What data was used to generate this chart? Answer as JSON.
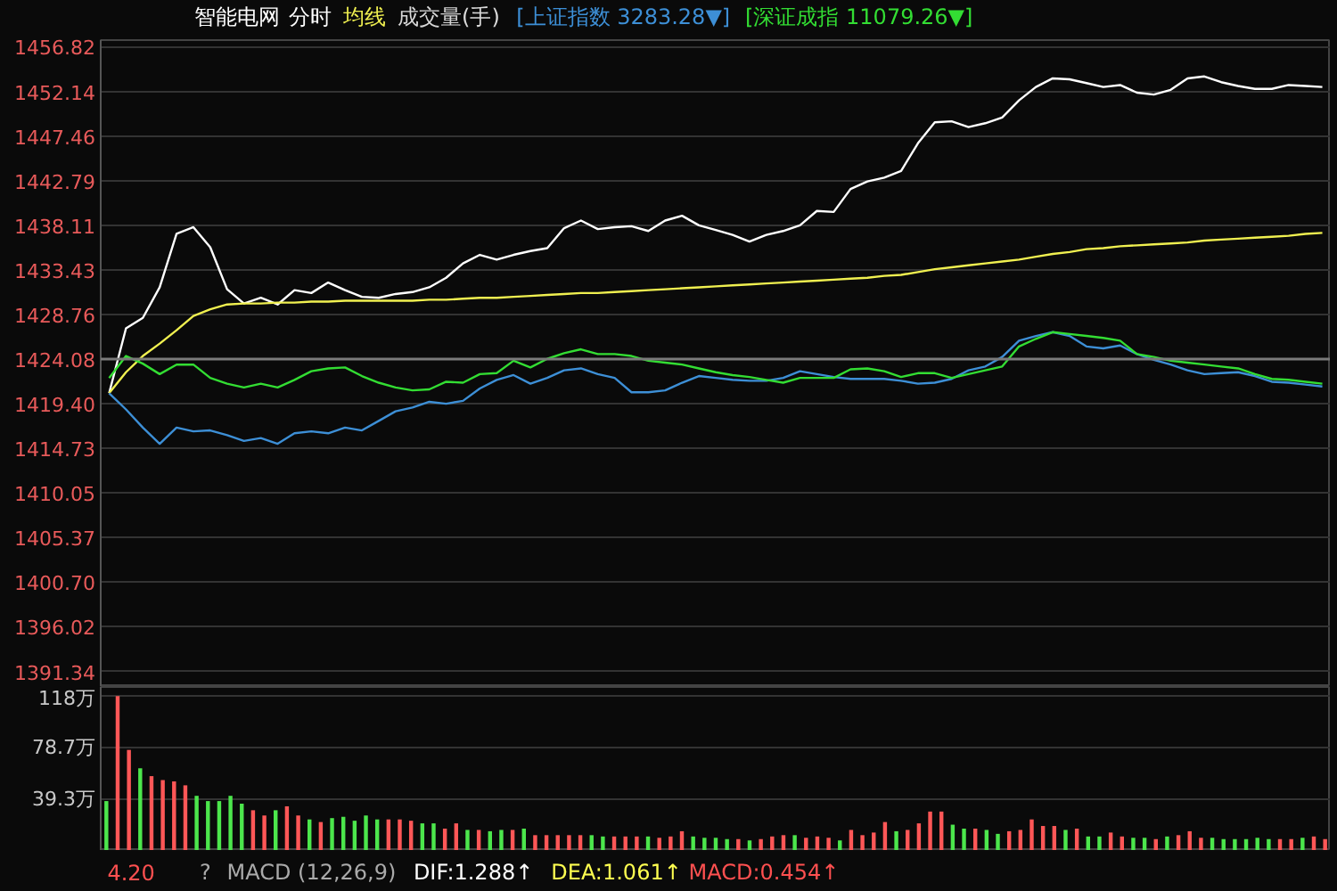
{
  "chart_data": [
    {
      "type": "line",
      "title": "智能电网",
      "subtitle": "分时",
      "grid": "y",
      "tick_labels": "y",
      "ylim": [
        1389.71,
        1457.51
      ],
      "yticks": [
        1391.34,
        1396.02,
        {
          "value": 1400.7,
          "label": "1400.70"
        },
        1405.37,
        1410.05,
        1414.73,
        {
          "value": 1419.4,
          "label": "1419.40"
        },
        1424.08,
        1428.76,
        1433.43,
        1438.11,
        1442.79,
        1447.46,
        1452.14,
        1456.82
      ],
      "ref_lines": [
        {
          "axis": "y",
          "value": 1424.08,
          "color": "#7a7a7a"
        }
      ],
      "annotations": [
        "成交量(手)"
      ],
      "categories": [
        null,
        null,
        null,
        null,
        null,
        null,
        null,
        null,
        null,
        null,
        null,
        null,
        null,
        null,
        null,
        null,
        null,
        null,
        null,
        null,
        null,
        null,
        null,
        null,
        null,
        null,
        null,
        null,
        null,
        null,
        null,
        null,
        null,
        null,
        null,
        null,
        null,
        null,
        null,
        null,
        null,
        null,
        null,
        null,
        null,
        null,
        null,
        null,
        null,
        null,
        null,
        null,
        null,
        null,
        null,
        null,
        null,
        null,
        null,
        null,
        null,
        null,
        null,
        null,
        null,
        null,
        null,
        null,
        null,
        null,
        null,
        null,
        null
      ],
      "series": [
        {
          "color": "#ffffff",
          "values": [
            1420.5,
            1427.3,
            1428.4,
            1431.6,
            1437.2,
            1437.9,
            1435.8,
            1431.4,
            1429.9,
            1430.5,
            1429.8,
            1431.3,
            1431.0,
            1432.1,
            1431.3,
            1430.6,
            1430.5,
            1430.9,
            1431.1,
            1431.6,
            1432.6,
            1434.1,
            1435.0,
            1434.5,
            1435.0,
            1435.4,
            1435.7,
            1437.8,
            1438.6,
            1437.7,
            1437.9,
            1438.0,
            1437.5,
            1438.6,
            1439.1,
            1438.1,
            1437.6,
            1437.1,
            1436.4,
            1437.1,
            1437.5,
            1438.1,
            1439.6,
            1439.5,
            1441.9,
            1442.7,
            1443.1,
            1443.8,
            1446.7,
            1448.9,
            1449.0,
            1448.4,
            1448.8,
            1449.4,
            1451.2,
            1452.6,
            1453.5,
            1453.4,
            1453.0,
            1452.6,
            1452.8,
            1452.0,
            1451.8,
            1452.3,
            1453.5,
            1453.7,
            1453.1,
            1452.7,
            1452.4,
            1452.4,
            1452.8,
            1452.7,
            1452.6
          ]
        },
        {
          "name": "均线",
          "color": "#f0f050",
          "values": [
            1420.5,
            1422.7,
            1424.4,
            1425.7,
            1427.1,
            1428.6,
            1429.3,
            1429.8,
            1429.9,
            1429.9,
            1430.0,
            1430.0,
            1430.1,
            1430.1,
            1430.2,
            1430.2,
            1430.2,
            1430.2,
            1430.2,
            1430.3,
            1430.3,
            1430.4,
            1430.5,
            1430.5,
            1430.6,
            1430.7,
            1430.8,
            1430.9,
            1431.0,
            1431.0,
            1431.1,
            1431.2,
            1431.3,
            1431.4,
            1431.5,
            1431.6,
            1431.7,
            1431.8,
            1431.9,
            1432.0,
            1432.1,
            1432.2,
            1432.3,
            1432.4,
            1432.5,
            1432.6,
            1432.8,
            1432.9,
            1433.2,
            1433.5,
            1433.7,
            1433.9,
            1434.1,
            1434.3,
            1434.5,
            1434.8,
            1435.1,
            1435.3,
            1435.6,
            1435.7,
            1435.9,
            1436.0,
            1436.1,
            1436.2,
            1436.3,
            1436.5,
            1436.6,
            1436.7,
            1436.8,
            1436.9,
            1437.0,
            1437.2,
            1437.3
          ]
        },
        {
          "name": "[上证指数 3283.28▼]",
          "color": "#3d8fd6",
          "values": [
            1420.5,
            1418.8,
            1416.9,
            1415.2,
            1416.9,
            1416.5,
            1416.6,
            1416.1,
            1415.5,
            1415.8,
            1415.2,
            1416.3,
            1416.5,
            1416.3,
            1416.9,
            1416.6,
            1417.6,
            1418.6,
            1419.0,
            1419.6,
            1419.4,
            1419.7,
            1421.0,
            1421.9,
            1422.4,
            1421.5,
            1422.1,
            1422.9,
            1423.1,
            1422.5,
            1422.1,
            1420.6,
            1420.6,
            1420.8,
            1421.6,
            1422.3,
            1422.1,
            1421.9,
            1421.8,
            1421.8,
            1422.1,
            1422.8,
            1422.5,
            1422.2,
            1422.0,
            1422.0,
            1422.0,
            1421.8,
            1421.5,
            1421.6,
            1422.0,
            1422.9,
            1423.3,
            1424.3,
            1426.0,
            1426.5,
            1426.9,
            1426.5,
            1425.4,
            1425.2,
            1425.5,
            1424.6,
            1424.0,
            1423.5,
            1422.9,
            1422.5,
            1422.6,
            1422.7,
            1422.3,
            1421.7,
            1421.6,
            1421.4,
            1421.2
          ]
        },
        {
          "name": "[深证成指 11079.26▼]",
          "color": "#33dd33",
          "values": [
            1422.1,
            1424.4,
            1423.6,
            1422.5,
            1423.5,
            1423.5,
            1422.1,
            1421.5,
            1421.1,
            1421.5,
            1421.1,
            1421.9,
            1422.8,
            1423.1,
            1423.2,
            1422.3,
            1421.6,
            1421.1,
            1420.8,
            1420.9,
            1421.7,
            1421.6,
            1422.5,
            1422.6,
            1423.9,
            1423.2,
            1424.1,
            1424.7,
            1425.1,
            1424.6,
            1424.6,
            1424.4,
            1423.9,
            1423.7,
            1423.5,
            1423.1,
            1422.7,
            1422.4,
            1422.2,
            1421.9,
            1421.6,
            1422.1,
            1422.1,
            1422.1,
            1423.0,
            1423.1,
            1422.8,
            1422.2,
            1422.6,
            1422.6,
            1422.1,
            1422.5,
            1422.9,
            1423.3,
            1425.4,
            1426.2,
            1426.9,
            1426.7,
            1426.5,
            1426.3,
            1426.0,
            1424.6,
            1424.3,
            1423.9,
            1423.7,
            1423.5,
            1423.3,
            1423.1,
            1422.5,
            1422.0,
            1421.9,
            1421.7,
            1421.5
          ]
        }
      ]
    },
    {
      "type": "bar",
      "grid": "y",
      "tick_labels": "y",
      "ylim": [
        0,
        125
      ],
      "yticks": [
        {
          "value": 39.3,
          "label": "39.3万"
        },
        {
          "value": 78.7,
          "label": "78.7万"
        },
        {
          "value": 118,
          "label": "118万"
        }
      ],
      "annotations": [
        "4.20",
        "?",
        "MACD (12,26,9)",
        "DIF:1.288↑",
        "DEA:1.061↑",
        "MACD:0.454↑"
      ],
      "categories": [
        null,
        null,
        null,
        null,
        null,
        null,
        null,
        null,
        null,
        null,
        null,
        null,
        null,
        null,
        null,
        null,
        null,
        null,
        null,
        null,
        null,
        null,
        null,
        null,
        null,
        null,
        null,
        null,
        null,
        null,
        null,
        null,
        null,
        null,
        null,
        null,
        null,
        null,
        null,
        null,
        null,
        null,
        null,
        null,
        null,
        null,
        null,
        null,
        null,
        null,
        null,
        null,
        null,
        null,
        null,
        null,
        null,
        null,
        null,
        null,
        null,
        null,
        null,
        null,
        null,
        null,
        null,
        null,
        null,
        null,
        null,
        null,
        null,
        null,
        null,
        null,
        null,
        null,
        null,
        null,
        null,
        null,
        null,
        null,
        null,
        null,
        null,
        null,
        null,
        null,
        null,
        null,
        null,
        null,
        null,
        null,
        null,
        null,
        null,
        null,
        null,
        null,
        null,
        null,
        null,
        null,
        null,
        null,
        null
      ],
      "values": [
        38,
        118,
        77,
        63,
        57,
        54,
        53,
        50,
        42,
        38,
        38,
        42,
        36,
        31,
        27,
        31,
        34,
        27,
        24,
        22,
        25,
        26,
        23,
        27,
        24,
        24,
        24,
        23,
        21,
        21,
        17,
        21,
        16,
        16,
        15,
        16,
        16,
        17,
        12,
        12,
        12,
        12,
        12,
        12,
        11,
        11,
        11,
        11,
        11,
        10,
        11,
        15,
        11,
        10,
        10,
        9,
        9,
        8,
        9,
        11,
        12,
        12,
        10,
        11,
        10,
        8,
        16,
        12,
        14,
        22,
        15,
        16,
        21,
        30,
        30,
        20,
        17,
        17,
        16,
        13,
        15,
        16,
        24,
        19,
        19,
        16,
        17,
        11,
        11,
        14,
        11,
        10,
        10,
        9,
        11,
        12,
        15,
        10,
        10,
        9,
        9,
        9,
        10,
        9,
        9,
        9,
        10,
        11,
        9
      ],
      "colors": [
        "#4ce64c",
        "#ff5757",
        "#ff5757",
        "#4ce64c",
        "#ff5757",
        "#ff5757",
        "#ff5757",
        "#ff5757",
        "#4ce64c",
        "#4ce64c",
        "#4ce64c",
        "#4ce64c",
        "#4ce64c",
        "#ff5757",
        "#ff5757",
        "#4ce64c",
        "#ff5757",
        "#ff5757",
        "#4ce64c",
        "#ff5757",
        "#4ce64c",
        "#4ce64c",
        "#4ce64c",
        "#4ce64c",
        "#4ce64c",
        "#ff5757",
        "#ff5757",
        "#ff5757",
        "#4ce64c",
        "#4ce64c",
        "#ff5757",
        "#ff5757",
        "#4ce64c",
        "#ff5757",
        "#4ce64c",
        "#4ce64c",
        "#ff5757",
        "#4ce64c",
        "#ff5757",
        "#ff5757",
        "#ff5757",
        "#ff5757",
        "#ff5757",
        "#4ce64c",
        "#4ce64c",
        "#ff5757",
        "#ff5757",
        "#ff5757",
        "#4ce64c",
        "#ff5757",
        "#ff5757",
        "#ff5757",
        "#4ce64c",
        "#4ce64c",
        "#4ce64c",
        "#4ce64c",
        "#ff5757",
        "#4ce64c",
        "#ff5757",
        "#ff5757",
        "#ff5757",
        "#4ce64c",
        "#ff5757",
        "#ff5757",
        "#ff5757",
        "#4ce64c",
        "#ff5757",
        "#ff5757",
        "#ff5757",
        "#ff5757",
        "#4ce64c",
        "#ff5757",
        "#ff5757",
        "#ff5757",
        "#ff5757",
        "#4ce64c",
        "#4ce64c",
        "#ff5757",
        "#4ce64c",
        "#4ce64c",
        "#ff5757",
        "#ff5757",
        "#ff5757",
        "#ff5757",
        "#ff5757",
        "#4ce64c",
        "#ff5757",
        "#4ce64c",
        "#4ce64c",
        "#ff5757",
        "#ff5757",
        "#4ce64c",
        "#4ce64c",
        "#ff5757",
        "#4ce64c",
        "#ff5757",
        "#ff5757",
        "#ff5757",
        "#4ce64c",
        "#4ce64c",
        "#4ce64c",
        "#4ce64c",
        "#4ce64c",
        "#4ce64c",
        "#ff5757",
        "#ff5757",
        "#4ce64c",
        "#ff5757",
        "#ff5757"
      ]
    }
  ]
}
